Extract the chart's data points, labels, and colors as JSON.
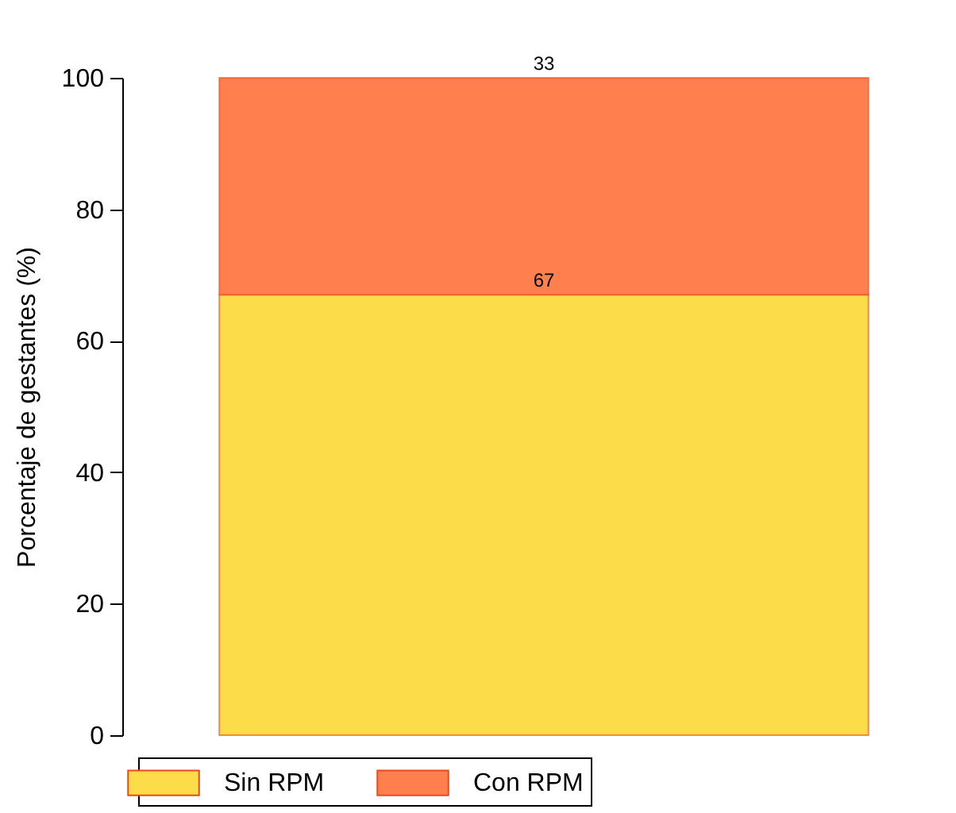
{
  "chart_data": {
    "type": "bar",
    "stacked": true,
    "categories": [
      null
    ],
    "series": [
      {
        "name": "Sin RPM",
        "color": "#fddc4a",
        "values": [
          67
        ]
      },
      {
        "name": "Con RPM",
        "color": "#ff7f4f",
        "values": [
          33
        ]
      }
    ],
    "ylabel": "Porcentaje de gestantes (%)",
    "ylim": [
      0,
      100
    ],
    "yticks": [
      0,
      20,
      40,
      60,
      80,
      100
    ],
    "data_labels": true,
    "legend": "bottom",
    "grid": false,
    "tick_labels": "y"
  }
}
